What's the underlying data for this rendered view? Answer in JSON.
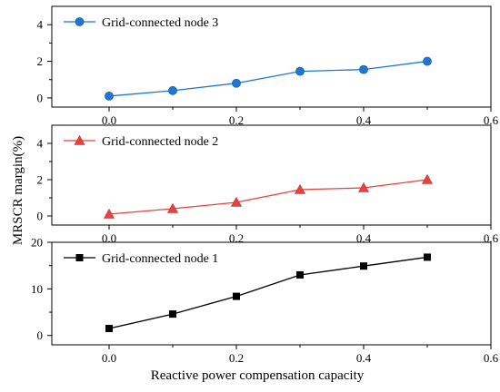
{
  "chart_data": [
    {
      "type": "line",
      "panel": "top",
      "x": [
        0.0,
        0.1,
        0.2,
        0.3,
        0.4,
        0.5
      ],
      "series": [
        {
          "name": "Grid-connected node 3",
          "values": [
            0.1,
            0.4,
            0.8,
            1.45,
            1.55,
            2.0
          ],
          "color": "#1f77d4",
          "marker": "circle"
        }
      ],
      "xlim": [
        -0.09,
        0.6
      ],
      "ylim": [
        -0.5,
        5
      ],
      "xticks": [
        0.0,
        0.2,
        0.4,
        0.6
      ],
      "xtick_labels": [
        "0.0",
        "0.2",
        "0.4",
        "0.6"
      ],
      "yticks": [
        0,
        2,
        4
      ],
      "ytick_labels": [
        "0",
        "2",
        "4"
      ],
      "legend": "top-left",
      "grid": false
    },
    {
      "type": "line",
      "panel": "middle",
      "x": [
        0.0,
        0.1,
        0.2,
        0.3,
        0.4,
        0.5
      ],
      "series": [
        {
          "name": "Grid-connected node 2",
          "values": [
            0.1,
            0.4,
            0.75,
            1.45,
            1.55,
            2.0
          ],
          "color": "#e8413f",
          "marker": "triangle"
        }
      ],
      "xlim": [
        -0.09,
        0.6
      ],
      "ylim": [
        -0.5,
        5
      ],
      "xticks": [
        0.0,
        0.2,
        0.4,
        0.6
      ],
      "xtick_labels": [
        "0.0",
        "0.2",
        "0.4",
        "0.6"
      ],
      "yticks": [
        0,
        2,
        4
      ],
      "ytick_labels": [
        "0",
        "2",
        "4"
      ],
      "legend": "top-left",
      "grid": false
    },
    {
      "type": "line",
      "panel": "bottom",
      "x": [
        0.0,
        0.1,
        0.2,
        0.3,
        0.4,
        0.5
      ],
      "series": [
        {
          "name": "Grid-connected node 1",
          "values": [
            1.5,
            4.6,
            8.4,
            13.0,
            14.9,
            16.8
          ],
          "color": "#000000",
          "marker": "square"
        }
      ],
      "xlim": [
        -0.09,
        0.6
      ],
      "ylim": [
        -2,
        20
      ],
      "xticks": [
        0.0,
        0.2,
        0.4,
        0.6
      ],
      "xtick_labels": [
        "0.0",
        "0.2",
        "0.4",
        "0.6"
      ],
      "yticks": [
        0,
        10,
        20
      ],
      "ytick_labels": [
        "0",
        "10",
        "20"
      ],
      "legend": "top-left",
      "grid": false
    }
  ],
  "labels": {
    "ylabel": "MRSCR margin(%)",
    "xlabel": "Reactive power compensation capacity"
  }
}
